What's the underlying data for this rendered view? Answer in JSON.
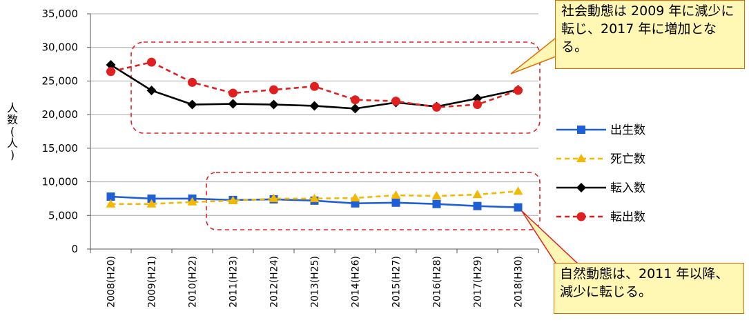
{
  "chart_data": {
    "type": "line",
    "categories": [
      "2008(H20)",
      "2009(H21)",
      "2010(H22)",
      "2011(H23)",
      "2012(H24)",
      "2013(H25)",
      "2014(H26)",
      "2015(H27)",
      "2016(H28)",
      "2017(H29)",
      "2018(H30)"
    ],
    "ylabel": "人数(人)",
    "ylim": [
      0,
      35000
    ],
    "yticks": [
      0,
      5000,
      10000,
      15000,
      20000,
      25000,
      30000,
      35000
    ],
    "ytick_labels": [
      "0",
      "5,000",
      "10,000",
      "15,000",
      "20,000",
      "25,000",
      "30,000",
      "35,000"
    ],
    "grid": true,
    "legend_position": "right",
    "series": [
      {
        "name": "出生数",
        "color": "#1f5fd6",
        "dash": "solid",
        "marker": "square",
        "values": [
          7800,
          7500,
          7500,
          7300,
          7400,
          7200,
          6800,
          6900,
          6700,
          6400,
          6200
        ]
      },
      {
        "name": "死亡数",
        "color": "#f5b800",
        "dash": "dashed",
        "marker": "triangle",
        "values": [
          6700,
          6700,
          7000,
          7200,
          7500,
          7500,
          7600,
          8000,
          7900,
          8100,
          8600
        ]
      },
      {
        "name": "転入数",
        "color": "#000000",
        "dash": "solid",
        "marker": "diamond",
        "values": [
          27400,
          23600,
          21500,
          21600,
          21500,
          21300,
          20900,
          21800,
          21200,
          22400,
          23700
        ]
      },
      {
        "name": "転出数",
        "color": "#e02020",
        "dash": "dashed",
        "marker": "circle",
        "values": [
          26400,
          27800,
          24800,
          23200,
          23700,
          24200,
          22200,
          22000,
          21100,
          21500,
          23600
        ]
      }
    ],
    "annotations": [
      {
        "text": "社会動態は 2009 年に減少に転じ、2017 年に増加となる。"
      },
      {
        "text": "自然動態は、2011 年以降、減少に転じる。"
      }
    ]
  },
  "callouts": {
    "top": "社会動態は 2009 年に減少に転じ、2017 年に増加となる。",
    "bottom": "自然動態は、2011 年以降、減少に転じる。"
  },
  "ylabel_chars": [
    "人",
    "数",
    "(",
    "人",
    ")"
  ]
}
